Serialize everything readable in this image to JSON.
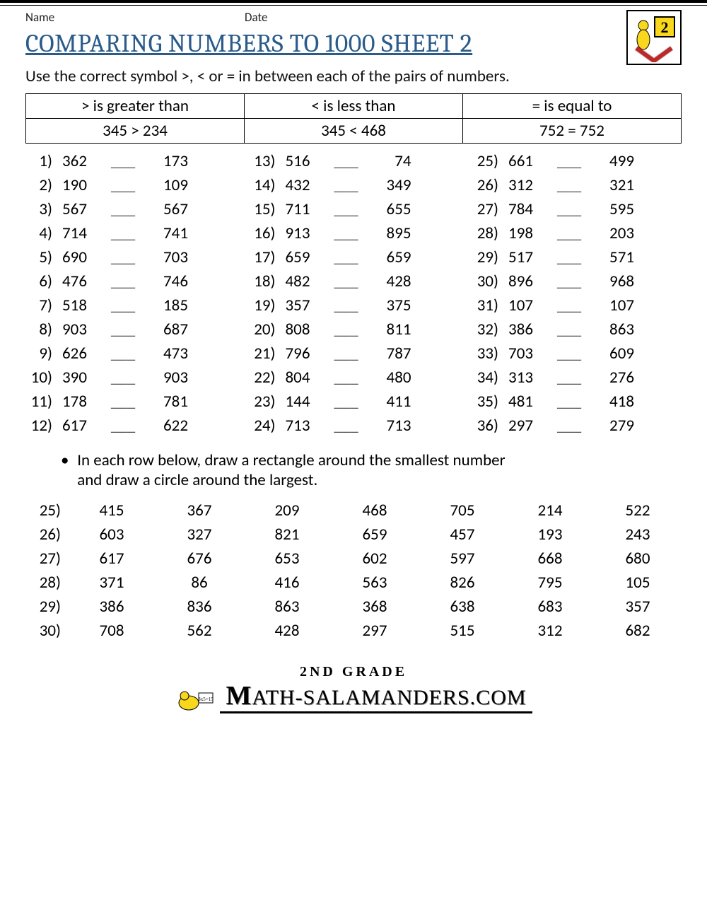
{
  "header": {
    "name_label": "Name",
    "date_label": "Date",
    "title": "COMPARING NUMBERS TO 1000 SHEET 2",
    "instruction": "Use the correct symbol >, < or = in between each of the pairs of numbers.",
    "logo_grade": "2"
  },
  "legend": {
    "gt_label": "> is greater than",
    "lt_label": "< is less than",
    "eq_label": "= is equal to",
    "gt_example": "345 > 234",
    "lt_example": "345 < 468",
    "eq_example": "752 = 752"
  },
  "problems": [
    {
      "n": "1)",
      "a": "362",
      "b": "173"
    },
    {
      "n": "2)",
      "a": "190",
      "b": "109"
    },
    {
      "n": "3)",
      "a": "567",
      "b": "567"
    },
    {
      "n": "4)",
      "a": "714",
      "b": "741"
    },
    {
      "n": "5)",
      "a": "690",
      "b": "703"
    },
    {
      "n": "6)",
      "a": "476",
      "b": "746"
    },
    {
      "n": "7)",
      "a": "518",
      "b": "185"
    },
    {
      "n": "8)",
      "a": "903",
      "b": "687"
    },
    {
      "n": "9)",
      "a": "626",
      "b": "473"
    },
    {
      "n": "10)",
      "a": "390",
      "b": "903"
    },
    {
      "n": "11)",
      "a": "178",
      "b": "781"
    },
    {
      "n": "12)",
      "a": "617",
      "b": "622"
    },
    {
      "n": "13)",
      "a": "516",
      "b": "74"
    },
    {
      "n": "14)",
      "a": "432",
      "b": "349"
    },
    {
      "n": "15)",
      "a": "711",
      "b": "655"
    },
    {
      "n": "16)",
      "a": "913",
      "b": "895"
    },
    {
      "n": "17)",
      "a": "659",
      "b": "659"
    },
    {
      "n": "18)",
      "a": "482",
      "b": "428"
    },
    {
      "n": "19)",
      "a": "357",
      "b": "375"
    },
    {
      "n": "20)",
      "a": "808",
      "b": "811"
    },
    {
      "n": "21)",
      "a": "796",
      "b": "787"
    },
    {
      "n": "22)",
      "a": "804",
      "b": "480"
    },
    {
      "n": "23)",
      "a": "144",
      "b": "411"
    },
    {
      "n": "24)",
      "a": "713",
      "b": "713"
    },
    {
      "n": "25)",
      "a": "661",
      "b": "499"
    },
    {
      "n": "26)",
      "a": "312",
      "b": "321"
    },
    {
      "n": "27)",
      "a": "784",
      "b": "595"
    },
    {
      "n": "28)",
      "a": "198",
      "b": "203"
    },
    {
      "n": "29)",
      "a": "517",
      "b": "571"
    },
    {
      "n": "30)",
      "a": "896",
      "b": "968"
    },
    {
      "n": "31)",
      "a": "107",
      "b": "107"
    },
    {
      "n": "32)",
      "a": "386",
      "b": "863"
    },
    {
      "n": "33)",
      "a": "703",
      "b": "609"
    },
    {
      "n": "34)",
      "a": "313",
      "b": "276"
    },
    {
      "n": "35)",
      "a": "481",
      "b": "418"
    },
    {
      "n": "36)",
      "a": "297",
      "b": "279"
    }
  ],
  "section2": {
    "instruction_line1": "In each row below, draw a rectangle around the smallest number",
    "instruction_line2": "and draw a circle around the largest."
  },
  "rows": [
    {
      "n": "25)",
      "v": [
        "415",
        "367",
        "209",
        "468",
        "705",
        "214",
        "522"
      ]
    },
    {
      "n": "26)",
      "v": [
        "603",
        "327",
        "821",
        "659",
        "457",
        "193",
        "243"
      ]
    },
    {
      "n": "27)",
      "v": [
        "617",
        "676",
        "653",
        "602",
        "597",
        "668",
        "680"
      ]
    },
    {
      "n": "28)",
      "v": [
        "371",
        "86",
        "416",
        "563",
        "826",
        "795",
        "105"
      ]
    },
    {
      "n": "29)",
      "v": [
        "386",
        "836",
        "863",
        "368",
        "638",
        "683",
        "357"
      ]
    },
    {
      "n": "30)",
      "v": [
        "708",
        "562",
        "428",
        "297",
        "515",
        "312",
        "682"
      ]
    }
  ],
  "footer": {
    "grade_label": "2ND GRADE",
    "brand_letter": "M",
    "brand_rest": "ATH-SALAMANDERS.COM"
  },
  "colors": {
    "title": "#2a5b8a",
    "logo_yellow": "#f9d71c",
    "rule": "#000000"
  }
}
